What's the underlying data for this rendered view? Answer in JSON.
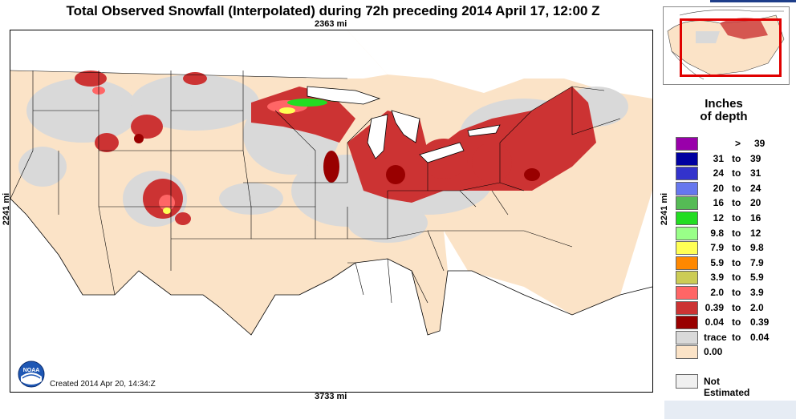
{
  "title": "Total Observed Snowfall (Interpolated) during 72h preceding 2014 April 17, 12:00 Z",
  "map": {
    "distance_top": "2363 mi",
    "distance_bottom": "3733 mi",
    "distance_left": "2241 mi",
    "distance_right": "2241 mi",
    "created": "Created 2014 Apr 20, 14:34:Z",
    "logo_text": "NOAA"
  },
  "legend": {
    "title_line1": "Inches",
    "title_line2": "of depth",
    "to_word": "to",
    "entries": [
      {
        "low": "",
        "high": "39",
        "prefix": ">",
        "color": "#9900aa"
      },
      {
        "low": "31",
        "high": "39",
        "color": "#0000a0"
      },
      {
        "low": "24",
        "high": "31",
        "color": "#3333cc"
      },
      {
        "low": "20",
        "high": "24",
        "color": "#6677ee"
      },
      {
        "low": "16",
        "high": "20",
        "color": "#55bb55"
      },
      {
        "low": "12",
        "high": "16",
        "color": "#22dd22"
      },
      {
        "low": "9.8",
        "high": "12",
        "color": "#99ff88"
      },
      {
        "low": "7.9",
        "high": "9.8",
        "color": "#ffff55"
      },
      {
        "low": "5.9",
        "high": "7.9",
        "color": "#ff8800"
      },
      {
        "low": "3.9",
        "high": "5.9",
        "color": "#cccc55"
      },
      {
        "low": "2.0",
        "high": "3.9",
        "color": "#ff6666"
      },
      {
        "low": "0.39",
        "high": "2.0",
        "color": "#cc3333"
      },
      {
        "low": "0.04",
        "high": "0.39",
        "color": "#990000"
      },
      {
        "low": "trace",
        "high": "0.04",
        "color": "#d9d9d9"
      },
      {
        "low": "0.00",
        "high": "",
        "full": "0.00",
        "color": "#fbe3c7"
      }
    ],
    "not_estimated": "Not Estimated"
  },
  "colors": {
    "land": "#fbe3c7",
    "trace": "#d9d9d9",
    "light_red": "#cc3333",
    "dark_red": "#990000",
    "pink": "#ff6666",
    "green": "#22dd22",
    "yellow": "#ffff55",
    "water": "#ffffff"
  }
}
